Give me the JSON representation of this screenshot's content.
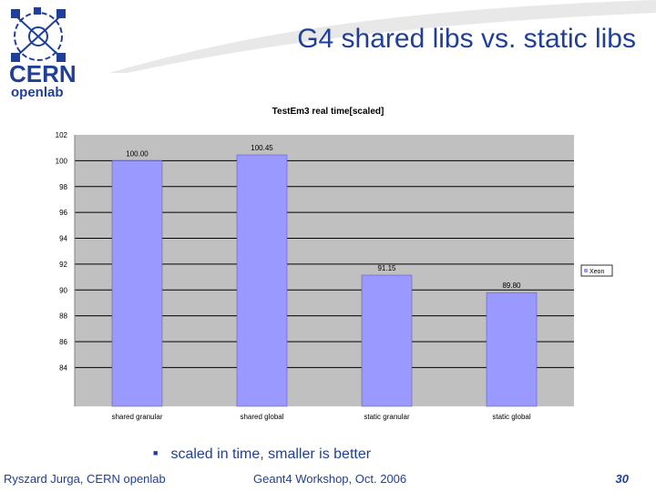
{
  "slide": {
    "title": "G4 shared libs vs. static libs",
    "bullet": "scaled in time, smaller is better",
    "footer_left": "Ryszard Jurga, CERN openlab",
    "footer_center": "Geant4 Workshop, Oct. 2006",
    "page_number": "30"
  },
  "logo": {
    "line1": "CERN",
    "line2": "openlab"
  },
  "colors": {
    "accent": "#1f3f99",
    "bar": "#9999ff",
    "plot_bg": "#c0c0c0",
    "swoosh": "#e8e8e8"
  },
  "chart_data": {
    "type": "bar",
    "title": "TestEm3 real time[scaled]",
    "categories": [
      "shared granular",
      "shared global",
      "static granular",
      "static global"
    ],
    "series": [
      {
        "name": "Xeon",
        "values": [
          100.0,
          100.45,
          91.15,
          89.8
        ]
      }
    ],
    "value_labels": [
      "100.00",
      "100.45",
      "91.15",
      "89.80"
    ],
    "ylim": [
      81,
      102
    ],
    "yticks": [
      "102",
      "100",
      "98",
      "96",
      "94",
      "92",
      "90",
      "88",
      "86",
      "84"
    ],
    "grid": true,
    "legend": "right"
  }
}
